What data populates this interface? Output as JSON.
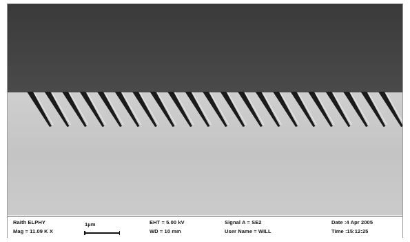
{
  "info_bar": {
    "system": "Raith ELPHY",
    "magnification": "Mag = 11.09 K X",
    "scale_bar_label": "1µm",
    "eht": "EHT = 5.00 kV",
    "wd": "WD = 10 mm",
    "signal": "Signal A = SE2",
    "user": "User Name = WILL",
    "date": "Date :4 Apr 2005",
    "time": "Time :15:12:25"
  },
  "micrograph": {
    "colors": {
      "upper_region": "#404040",
      "lower_region": "#c6c6c6",
      "groove": "#1a1a1a"
    },
    "grating_groove_count": 22
  }
}
